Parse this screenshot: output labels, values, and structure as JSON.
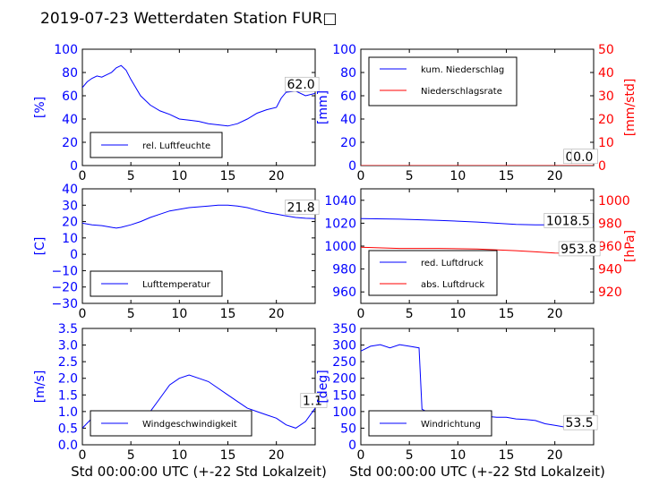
{
  "figure": {
    "title": "2019-07-23 Wetterdaten Station FUR□",
    "xlabel": "Std 00:00:00 UTC (+-22 Std Lokalzeit)"
  },
  "colors": {
    "primary": "#0000ff",
    "secondary": "#ff0000",
    "axis": "#000000"
  },
  "chart_data": [
    {
      "id": "humidity",
      "type": "line",
      "xlim": [
        0,
        24
      ],
      "ylim": [
        0,
        100
      ],
      "xticks": [
        "0",
        "5",
        "10",
        "15",
        "20"
      ],
      "yticks": [
        "0",
        "20",
        "40",
        "60",
        "80",
        "100"
      ],
      "ylabel": "[%]",
      "series": [
        {
          "name": "rel. Luftfeuchte",
          "color": "#0000ff",
          "x": [
            0,
            0.5,
            1,
            1.5,
            2,
            2.5,
            3,
            3.5,
            4,
            4.5,
            5,
            5.5,
            6,
            7,
            8,
            9,
            10,
            11,
            12,
            13,
            14,
            15,
            16,
            17,
            18,
            19,
            20,
            20.5,
            21,
            22,
            23,
            24
          ],
          "y": [
            67,
            72,
            75,
            77,
            76,
            78,
            80,
            84,
            86,
            82,
            74,
            67,
            60,
            52,
            47,
            44,
            40,
            39,
            38,
            36,
            35,
            34,
            36,
            40,
            45,
            48,
            50,
            58,
            63,
            64,
            60,
            62
          ]
        }
      ],
      "annotation": "62.0",
      "annotation_at": [
        21,
        66
      ]
    },
    {
      "id": "precip",
      "type": "line",
      "xlim": [
        0,
        24
      ],
      "ylim": [
        0,
        100
      ],
      "y2lim": [
        0,
        50
      ],
      "xticks": [
        "0",
        "5",
        "10",
        "15",
        "20"
      ],
      "yticks": [
        "0",
        "20",
        "40",
        "60",
        "80",
        "100"
      ],
      "y2ticks": [
        "0",
        "10",
        "20",
        "30",
        "40",
        "50"
      ],
      "ylabel": "[mm]",
      "y2label": "[mm/std]",
      "series": [
        {
          "name": "kum. Niederschlag",
          "color": "#0000ff",
          "x": [
            0,
            24
          ],
          "y": [
            0,
            0
          ]
        },
        {
          "name": "Niederschlagsrate",
          "color": "#ff0000",
          "x": [
            0,
            24
          ],
          "y": [
            0,
            0
          ]
        }
      ],
      "annotation": "0.0",
      "annotation2": "0.0",
      "annotation_at": [
        21,
        4
      ]
    },
    {
      "id": "temperature",
      "type": "line",
      "xlim": [
        0,
        24
      ],
      "ylim": [
        -30,
        40
      ],
      "xticks": [
        "0",
        "5",
        "10",
        "15",
        "20"
      ],
      "yticks": [
        "−30",
        "−20",
        "−10",
        "0",
        "10",
        "20",
        "30",
        "40"
      ],
      "ylabel": "[C]",
      "series": [
        {
          "name": "Lufttemperatur",
          "color": "#0000ff",
          "x": [
            0,
            1,
            2,
            3,
            3.5,
            4,
            5,
            6,
            7,
            8,
            9,
            10,
            11,
            12,
            13,
            14,
            15,
            16,
            17,
            18,
            19,
            20,
            21,
            22,
            23,
            24
          ],
          "y": [
            19,
            18,
            17.5,
            16.5,
            16,
            16.5,
            18,
            20,
            22.5,
            24.5,
            26.5,
            27.5,
            28.5,
            29,
            29.5,
            30,
            30,
            29.5,
            28.5,
            27,
            25.5,
            24.5,
            23.5,
            22.5,
            22,
            21.8
          ]
        }
      ],
      "annotation": "21.8",
      "annotation_at": [
        21,
        26
      ]
    },
    {
      "id": "pressure",
      "type": "line",
      "xlim": [
        0,
        24
      ],
      "ylim": [
        950,
        1050
      ],
      "y2lim": [
        910,
        1010
      ],
      "xticks": [
        "0",
        "5",
        "10",
        "15",
        "20"
      ],
      "yticks": [
        "960",
        "980",
        "1000",
        "1020",
        "1040"
      ],
      "y2ticks": [
        "920",
        "940",
        "960",
        "980",
        "1000"
      ],
      "ylabel": "",
      "y2label": "[hPa]",
      "series": [
        {
          "name": "red. Luftdruck",
          "color": "#0000ff",
          "x": [
            0,
            4,
            8,
            12,
            16,
            18,
            20,
            22,
            24
          ],
          "y": [
            1024,
            1023.5,
            1022.5,
            1021,
            1019,
            1018.5,
            1018.5,
            1018.5,
            1018.5
          ]
        },
        {
          "name": "abs. Luftdruck",
          "color": "#ff0000",
          "x": [
            0,
            4,
            8,
            12,
            16,
            18,
            20,
            22,
            24
          ],
          "y": [
            959,
            958,
            958,
            957.5,
            956,
            955,
            954,
            953.8,
            953.8
          ]
        }
      ],
      "annotation": "1018.5",
      "annotation2": "953.8",
      "annotation_at": [
        19,
        1018.5
      ],
      "annotation2_at": [
        20.5,
        953.8
      ]
    },
    {
      "id": "windspeed",
      "type": "line",
      "xlim": [
        0,
        24
      ],
      "ylim": [
        0,
        3.5
      ],
      "xticks": [
        "0",
        "5",
        "10",
        "15",
        "20"
      ],
      "yticks": [
        "0.0",
        "0.5",
        "1.0",
        "1.5",
        "2.0",
        "2.5",
        "3.0",
        "3.5"
      ],
      "ylabel": "[m/s]",
      "series": [
        {
          "name": "Windgeschwindigkeit",
          "color": "#0000ff",
          "x": [
            0,
            1,
            2,
            3,
            4,
            5,
            6,
            7,
            8,
            9,
            10,
            11,
            12,
            13,
            14,
            15,
            16,
            17,
            18,
            19,
            20,
            21,
            22,
            23,
            24
          ],
          "y": [
            0.5,
            0.8,
            0.8,
            0.8,
            0.8,
            0.6,
            0.7,
            1.0,
            1.4,
            1.8,
            2.0,
            2.1,
            2.0,
            1.9,
            1.7,
            1.5,
            1.3,
            1.1,
            1.0,
            0.9,
            0.8,
            0.6,
            0.5,
            0.7,
            1.1
          ]
        }
      ],
      "annotation": "1.1",
      "annotation_at": [
        22.6,
        1.2
      ]
    },
    {
      "id": "winddir",
      "type": "line",
      "xlim": [
        0,
        24
      ],
      "ylim": [
        0,
        360
      ],
      "xticks": [
        "0",
        "5",
        "10",
        "15",
        "20"
      ],
      "yticks": [
        "0",
        "50",
        "100",
        "150",
        "200",
        "250",
        "300",
        "350"
      ],
      "ylabel": "[deg]",
      "series": [
        {
          "name": "Windrichtung",
          "color": "#0000ff",
          "x": [
            0,
            1,
            2,
            3,
            4,
            5,
            6,
            6.3,
            7,
            8,
            9,
            10,
            11,
            12,
            13,
            14,
            15,
            16,
            17,
            18,
            19,
            20,
            21,
            22,
            23,
            24
          ],
          "y": [
            290,
            305,
            310,
            300,
            310,
            305,
            300,
            110,
            100,
            95,
            90,
            95,
            90,
            90,
            88,
            85,
            85,
            80,
            78,
            75,
            65,
            60,
            55,
            55,
            55,
            53.5
          ]
        }
      ],
      "annotation": "53.5",
      "annotation_at": [
        21,
        55
      ]
    }
  ]
}
